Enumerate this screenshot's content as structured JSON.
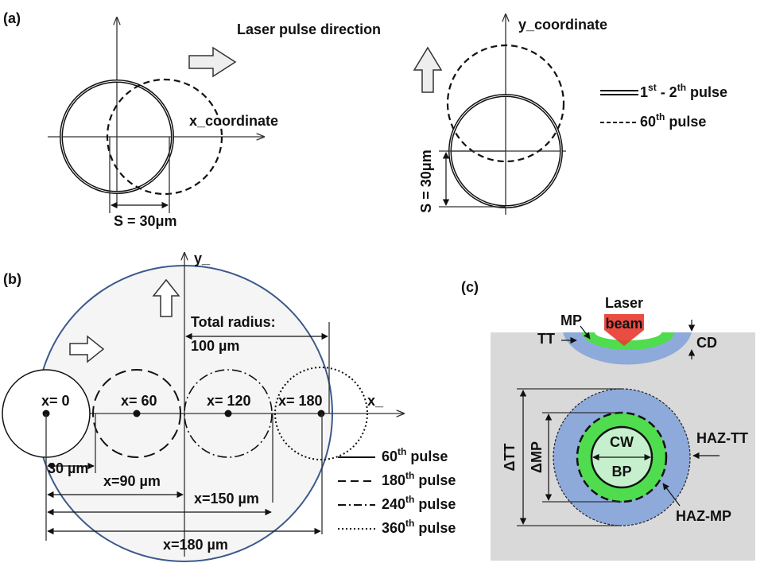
{
  "panel_a": {
    "label": "(a)",
    "direction": "Laser pulse direction",
    "x_axis": "x_coordinate",
    "spacing_x": "S = 30μm",
    "y_axis": "y_coordinate",
    "spacing_y": "S = 30μm",
    "legend": [
      [
        "1",
        "st",
        " - 2",
        "th",
        " pulse"
      ],
      [
        "60",
        "th",
        " pulse"
      ]
    ]
  },
  "panel_b": {
    "label": "(b)",
    "y_axis": "y_",
    "x_axis": "x_",
    "total_radius": [
      "Total radius:",
      "100 µm"
    ],
    "centers": [
      "x= 0",
      "x= 60",
      "x= 120",
      "x= 180"
    ],
    "distances": [
      "30 µm",
      "x=90 µm",
      "x=150 µm",
      "x=180 µm"
    ],
    "legend": [
      [
        "60",
        "th",
        " pulse"
      ],
      [
        "180",
        "th",
        " pulse"
      ],
      [
        "240",
        "th",
        " pulse"
      ],
      [
        "360",
        "th",
        " pulse"
      ]
    ]
  },
  "panel_c": {
    "label": "(c)",
    "beam": [
      "Laser",
      "beam"
    ],
    "mp": "MP",
    "tt": "TT",
    "cd": "CD",
    "cw": "CW",
    "bp": "BP",
    "delta_tt": "ΔTT",
    "delta_mp": "ΔMP",
    "haz_tt": "HAZ-TT",
    "haz_mp": "HAZ-MP"
  }
}
